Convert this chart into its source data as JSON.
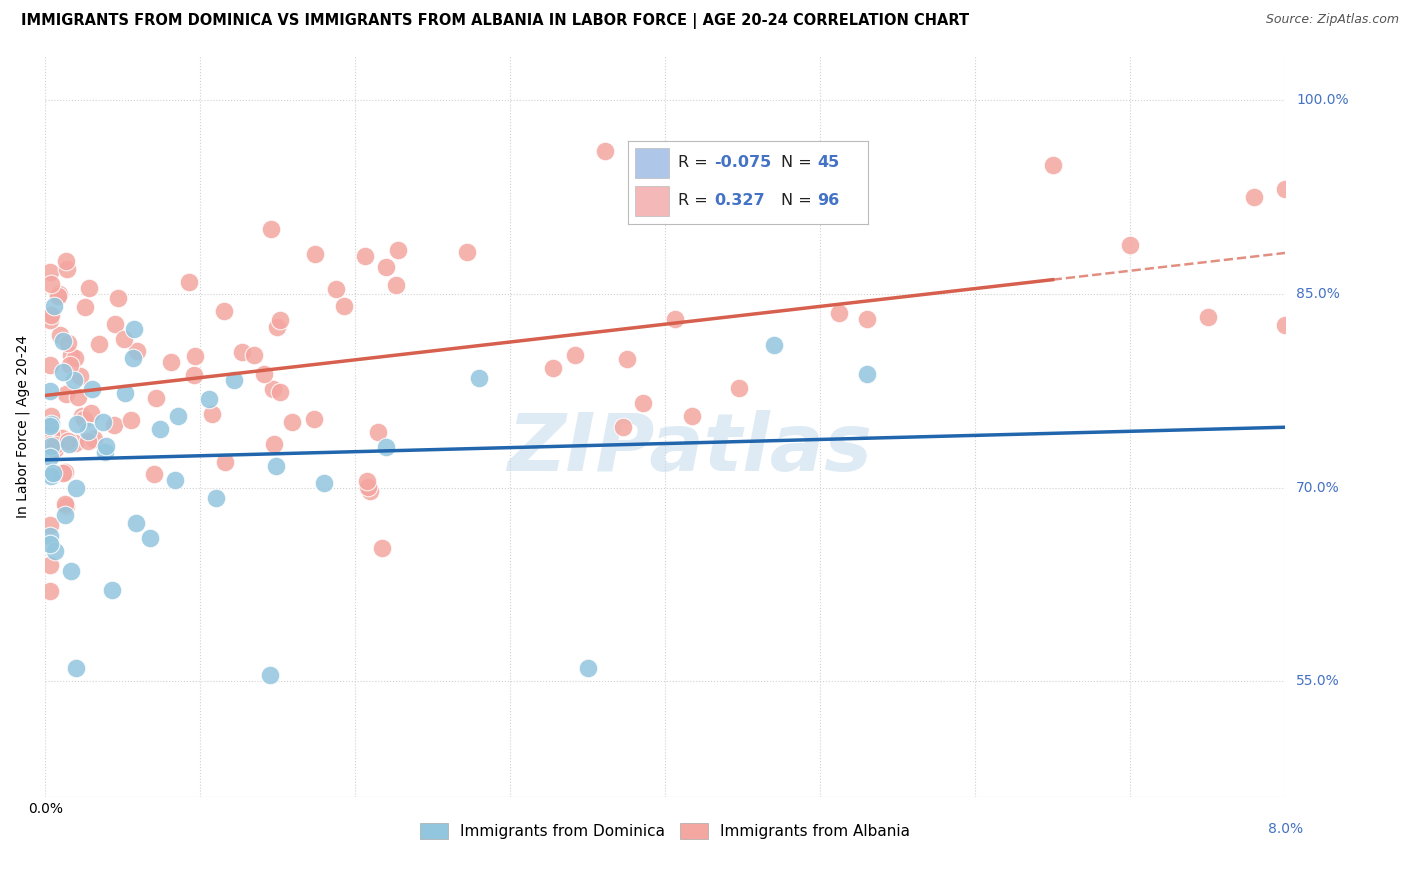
{
  "title": "IMMIGRANTS FROM DOMINICA VS IMMIGRANTS FROM ALBANIA IN LABOR FORCE | AGE 20-24 CORRELATION CHART",
  "source": "Source: ZipAtlas.com",
  "ylabel": "In Labor Force | Age 20-24",
  "xlim": [
    0.0,
    0.08
  ],
  "ylim": [
    0.46,
    1.035
  ],
  "x_ticks": [
    0.0,
    0.01,
    0.02,
    0.03,
    0.04,
    0.05,
    0.06,
    0.07,
    0.08
  ],
  "y_ticks": [
    0.55,
    0.7,
    0.85,
    1.0
  ],
  "y_tick_labels": [
    "55.0%",
    "70.0%",
    "85.0%",
    "100.0%"
  ],
  "dominica_color": "#92c5de",
  "albania_color": "#f4a6a0",
  "dominica_line_color": "#2166ac",
  "albania_line_color": "#d6604d",
  "dominica_R": -0.075,
  "dominica_N": 45,
  "albania_R": 0.327,
  "albania_N": 96,
  "watermark": "ZIPatlas",
  "background_color": "#ffffff",
  "grid_color": "#d0d0d0",
  "tick_color": "#4472c4",
  "title_fontsize": 10.5,
  "axis_label_fontsize": 10,
  "tick_fontsize": 10,
  "legend_R_color": "#4472c4",
  "legend_box_blue": "#aec7e8",
  "legend_box_pink": "#f4b8b8"
}
